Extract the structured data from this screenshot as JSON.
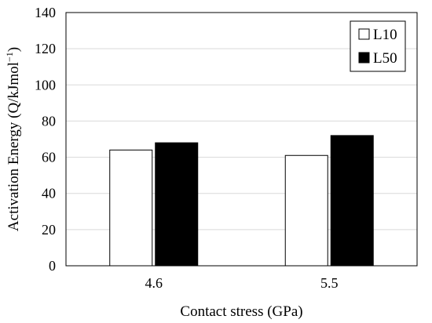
{
  "chart_data": {
    "type": "bar",
    "title": "",
    "xlabel": "Contact stress (GPa)",
    "ylabel": {
      "main": "Activation Energy (Q/kJmol",
      "superscript": "−1",
      "close": ")"
    },
    "categories": [
      "4.6",
      "5.5"
    ],
    "series": [
      {
        "name": "L10",
        "values": [
          64,
          61
        ],
        "fill": "#ffffff",
        "stroke": "#000000"
      },
      {
        "name": "L50",
        "values": [
          68,
          72
        ],
        "fill": "#000000",
        "stroke": "#000000"
      }
    ],
    "ylim": [
      0,
      140
    ],
    "yticks": [
      0,
      20,
      40,
      60,
      80,
      100,
      120,
      140
    ],
    "grid": true,
    "legend_position": "top-right",
    "colors": {
      "grid": "#d9d9d9",
      "axis": "#000000"
    }
  }
}
